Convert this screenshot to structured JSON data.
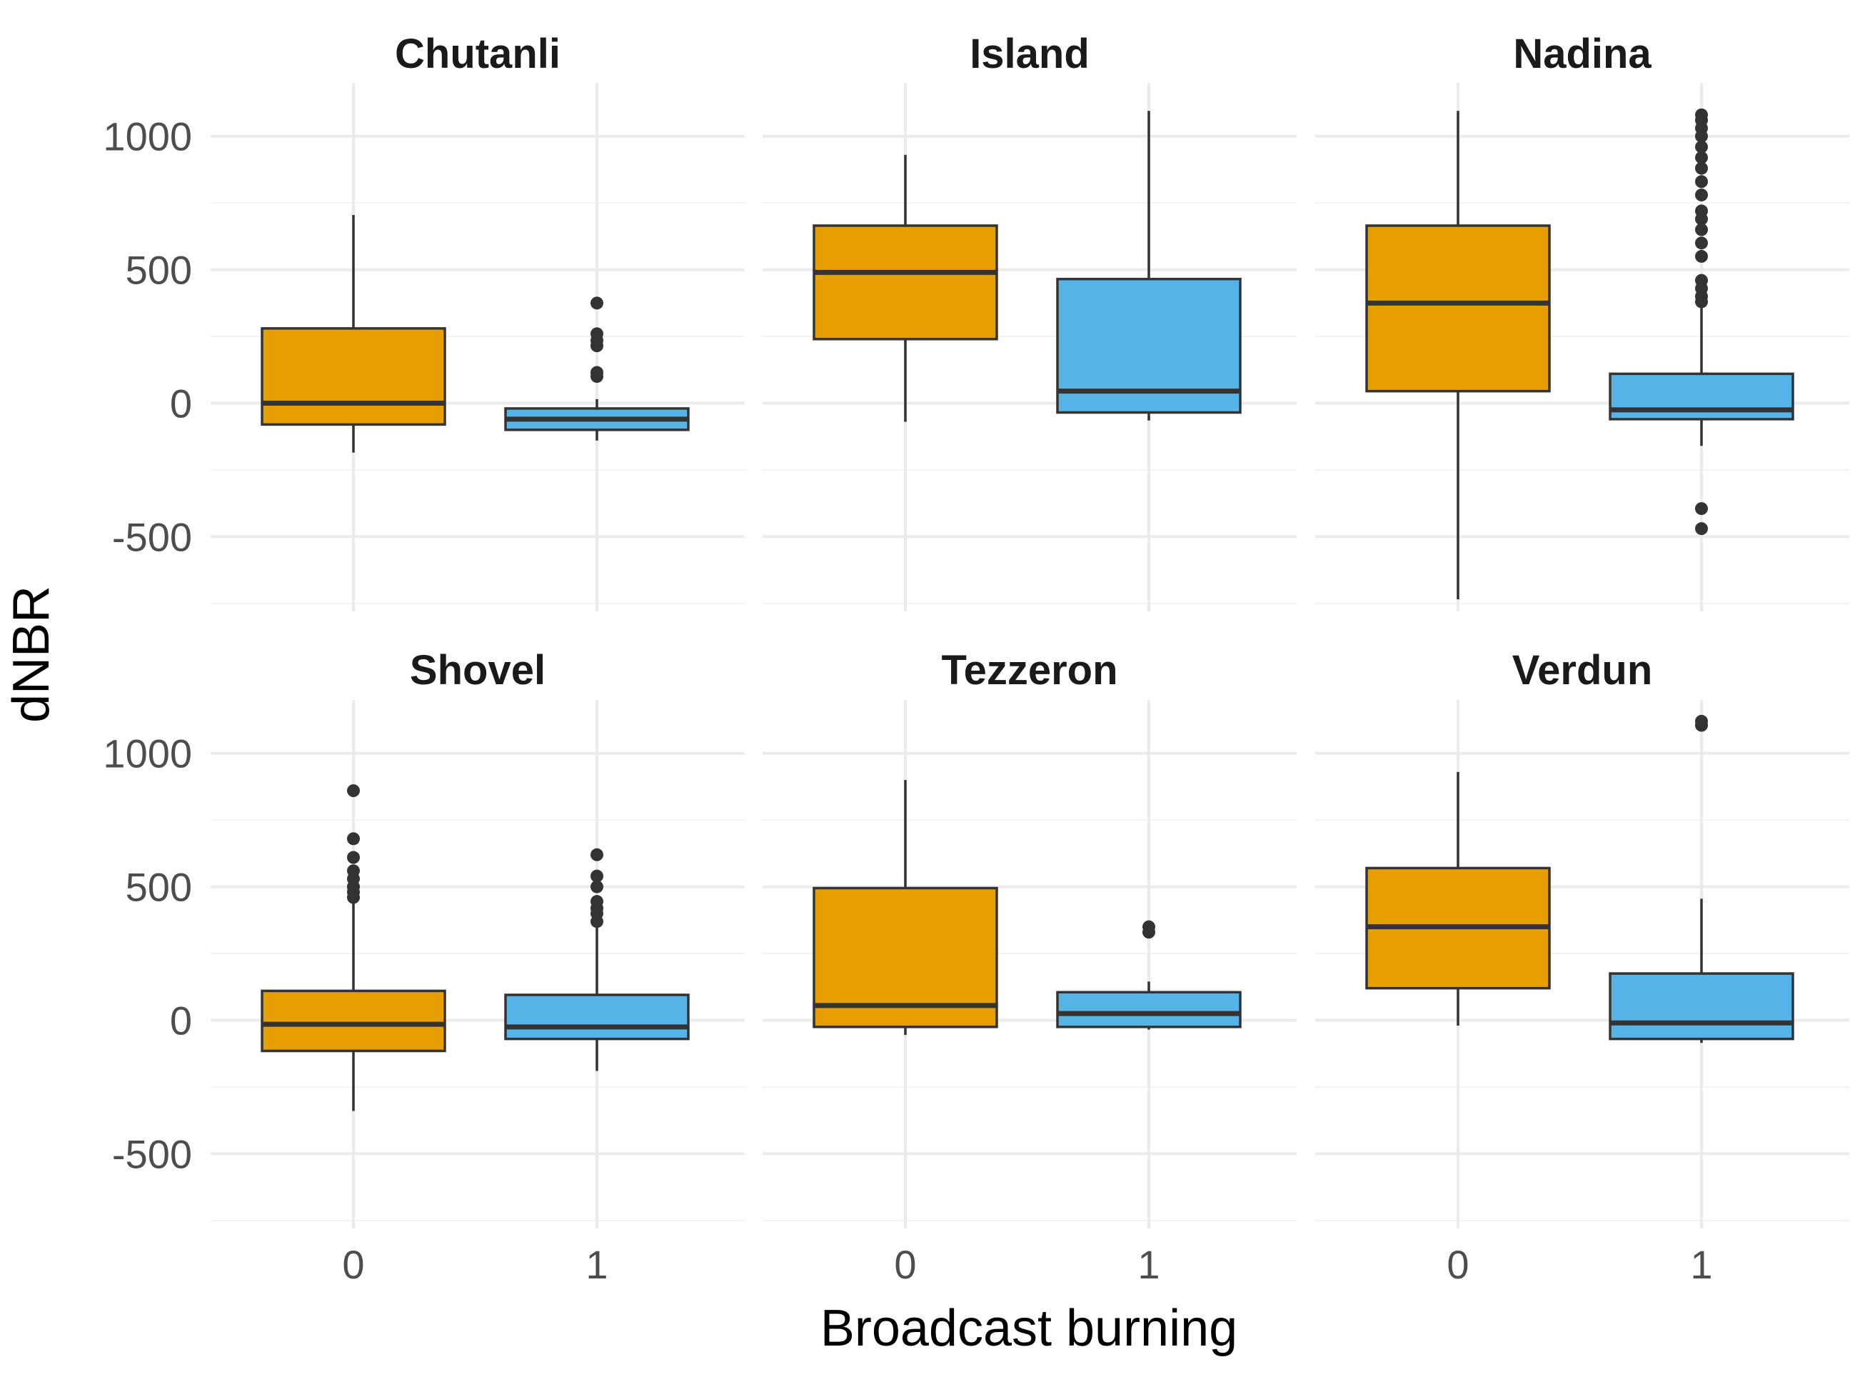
{
  "chart_data": {
    "type": "boxplot",
    "xlabel": "Broadcast burning",
    "ylabel": "dNBR",
    "x_categories": [
      "0",
      "1"
    ],
    "y_ticks": [
      -500,
      0,
      500,
      1000
    ],
    "ylim": [
      -780,
      1200
    ],
    "grid": true,
    "colors": {
      "0": "#E69F00",
      "1": "#56B4E9"
    },
    "panels": [
      {
        "name": "Chutanli",
        "boxes": [
          {
            "group": "0",
            "whisker_low": -185,
            "q1": -80,
            "median": 0,
            "q3": 280,
            "whisker_high": 705,
            "outliers": []
          },
          {
            "group": "1",
            "whisker_low": -140,
            "q1": -100,
            "median": -60,
            "q3": -20,
            "whisker_high": 15,
            "outliers": [
              100,
              115,
              215,
              235,
              260,
              375
            ]
          }
        ]
      },
      {
        "name": "Island",
        "boxes": [
          {
            "group": "0",
            "whisker_low": -70,
            "q1": 240,
            "median": 490,
            "q3": 665,
            "whisker_high": 930,
            "outliers": []
          },
          {
            "group": "1",
            "whisker_low": -65,
            "q1": -35,
            "median": 45,
            "q3": 465,
            "whisker_high": 1095,
            "outliers": []
          }
        ]
      },
      {
        "name": "Nadina",
        "boxes": [
          {
            "group": "0",
            "whisker_low": -735,
            "q1": 45,
            "median": 375,
            "q3": 665,
            "whisker_high": 1095,
            "outliers": []
          },
          {
            "group": "1",
            "whisker_low": -160,
            "q1": -60,
            "median": -25,
            "q3": 110,
            "whisker_high": 360,
            "outliers": [
              -470,
              -395,
              380,
              400,
              430,
              460,
              550,
              600,
              650,
              690,
              720,
              780,
              830,
              880,
              920,
              960,
              1000,
              1030,
              1060,
              1080
            ]
          }
        ]
      },
      {
        "name": "Shovel",
        "boxes": [
          {
            "group": "0",
            "whisker_low": -340,
            "q1": -115,
            "median": -15,
            "q3": 110,
            "whisker_high": 445,
            "outliers": [
              460,
              480,
              500,
              530,
              560,
              610,
              680,
              860
            ]
          }
        ]
      },
      {
        "name": "Shovel",
        "boxes": [
          {
            "group": "1",
            "whisker_low": -190,
            "q1": -70,
            "median": -25,
            "q3": 95,
            "whisker_high": 350,
            "outliers": [
              370,
              400,
              420,
              445,
              500,
              540,
              620
            ]
          }
        ]
      },
      {
        "name": "Tezzeron",
        "boxes": [
          {
            "group": "0",
            "whisker_low": -55,
            "q1": -25,
            "median": 55,
            "q3": 495,
            "whisker_high": 900,
            "outliers": []
          },
          {
            "group": "1",
            "whisker_low": -35,
            "q1": -25,
            "median": 25,
            "q3": 105,
            "whisker_high": 145,
            "outliers": [
              330,
              350
            ]
          }
        ]
      },
      {
        "name": "Verdun",
        "boxes": [
          {
            "group": "0",
            "whisker_low": -20,
            "q1": 120,
            "median": 350,
            "q3": 570,
            "whisker_high": 930,
            "outliers": []
          },
          {
            "group": "1",
            "whisker_low": -85,
            "q1": -70,
            "median": -10,
            "q3": 175,
            "whisker_high": 455,
            "outliers": [
              1105,
              1120
            ]
          }
        ]
      }
    ]
  }
}
